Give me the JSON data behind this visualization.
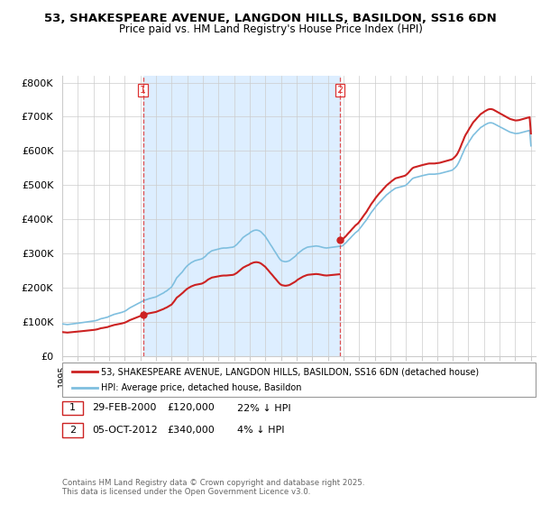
{
  "title": "53, SHAKESPEARE AVENUE, LANGDON HILLS, BASILDON, SS16 6DN",
  "subtitle": "Price paid vs. HM Land Registry's House Price Index (HPI)",
  "legend_line1": "53, SHAKESPEARE AVENUE, LANGDON HILLS, BASILDON, SS16 6DN (detached house)",
  "legend_line2": "HPI: Average price, detached house, Basildon",
  "sale1_date": "29-FEB-2000",
  "sale1_price": "£120,000",
  "sale1_hpi": "22% ↓ HPI",
  "sale2_date": "05-OCT-2012",
  "sale2_price": "£340,000",
  "sale2_hpi": "4% ↓ HPI",
  "footnote": "Contains HM Land Registry data © Crown copyright and database right 2025.\nThis data is licensed under the Open Government Licence v3.0.",
  "hpi_color": "#7fbfdf",
  "price_color": "#cc2222",
  "shade_color": "#ddeeff",
  "dashed_line_color": "#dd3333",
  "background_color": "#ffffff",
  "ylim": [
    0,
    820000
  ],
  "yticks": [
    0,
    100000,
    200000,
    300000,
    400000,
    500000,
    600000,
    700000,
    800000
  ],
  "sale1_x": 2000.17,
  "sale2_x": 2012.77,
  "sale1_price_val": 120000,
  "sale2_price_val": 340000,
  "hpi_x": [
    1995.0,
    1995.08,
    1995.17,
    1995.25,
    1995.33,
    1995.42,
    1995.5,
    1995.58,
    1995.67,
    1995.75,
    1995.83,
    1995.92,
    1996.0,
    1996.08,
    1996.17,
    1996.25,
    1996.33,
    1996.42,
    1996.5,
    1996.58,
    1996.67,
    1996.75,
    1996.83,
    1996.92,
    1997.0,
    1997.08,
    1997.17,
    1997.25,
    1997.33,
    1997.42,
    1997.5,
    1997.58,
    1997.67,
    1997.75,
    1997.83,
    1997.92,
    1998.0,
    1998.08,
    1998.17,
    1998.25,
    1998.33,
    1998.42,
    1998.5,
    1998.58,
    1998.67,
    1998.75,
    1998.83,
    1998.92,
    1999.0,
    1999.08,
    1999.17,
    1999.25,
    1999.33,
    1999.42,
    1999.5,
    1999.58,
    1999.67,
    1999.75,
    1999.83,
    1999.92,
    2000.0,
    2000.08,
    2000.17,
    2000.25,
    2000.33,
    2000.42,
    2000.5,
    2000.58,
    2000.67,
    2000.75,
    2000.83,
    2000.92,
    2001.0,
    2001.08,
    2001.17,
    2001.25,
    2001.33,
    2001.42,
    2001.5,
    2001.58,
    2001.67,
    2001.75,
    2001.83,
    2001.92,
    2002.0,
    2002.08,
    2002.17,
    2002.25,
    2002.33,
    2002.42,
    2002.5,
    2002.58,
    2002.67,
    2002.75,
    2002.83,
    2002.92,
    2003.0,
    2003.08,
    2003.17,
    2003.25,
    2003.33,
    2003.42,
    2003.5,
    2003.58,
    2003.67,
    2003.75,
    2003.83,
    2003.92,
    2004.0,
    2004.08,
    2004.17,
    2004.25,
    2004.33,
    2004.42,
    2004.5,
    2004.58,
    2004.67,
    2004.75,
    2004.83,
    2004.92,
    2005.0,
    2005.08,
    2005.17,
    2005.25,
    2005.33,
    2005.42,
    2005.5,
    2005.58,
    2005.67,
    2005.75,
    2005.83,
    2005.92,
    2006.0,
    2006.08,
    2006.17,
    2006.25,
    2006.33,
    2006.42,
    2006.5,
    2006.58,
    2006.67,
    2006.75,
    2006.83,
    2006.92,
    2007.0,
    2007.08,
    2007.17,
    2007.25,
    2007.33,
    2007.42,
    2007.5,
    2007.58,
    2007.67,
    2007.75,
    2007.83,
    2007.92,
    2008.0,
    2008.08,
    2008.17,
    2008.25,
    2008.33,
    2008.42,
    2008.5,
    2008.58,
    2008.67,
    2008.75,
    2008.83,
    2008.92,
    2009.0,
    2009.08,
    2009.17,
    2009.25,
    2009.33,
    2009.42,
    2009.5,
    2009.58,
    2009.67,
    2009.75,
    2009.83,
    2009.92,
    2010.0,
    2010.08,
    2010.17,
    2010.25,
    2010.33,
    2010.42,
    2010.5,
    2010.58,
    2010.67,
    2010.75,
    2010.83,
    2010.92,
    2011.0,
    2011.08,
    2011.17,
    2011.25,
    2011.33,
    2011.42,
    2011.5,
    2011.58,
    2011.67,
    2011.75,
    2011.83,
    2011.92,
    2012.0,
    2012.08,
    2012.17,
    2012.25,
    2012.33,
    2012.42,
    2012.5,
    2012.58,
    2012.67,
    2012.75,
    2012.83,
    2012.92,
    2013.0,
    2013.08,
    2013.17,
    2013.25,
    2013.33,
    2013.42,
    2013.5,
    2013.58,
    2013.67,
    2013.75,
    2013.83,
    2013.92,
    2014.0,
    2014.08,
    2014.17,
    2014.25,
    2014.33,
    2014.42,
    2014.5,
    2014.58,
    2014.67,
    2014.75,
    2014.83,
    2014.92,
    2015.0,
    2015.08,
    2015.17,
    2015.25,
    2015.33,
    2015.42,
    2015.5,
    2015.58,
    2015.67,
    2015.75,
    2015.83,
    2015.92,
    2016.0,
    2016.08,
    2016.17,
    2016.25,
    2016.33,
    2016.42,
    2016.5,
    2016.58,
    2016.67,
    2016.75,
    2016.83,
    2016.92,
    2017.0,
    2017.08,
    2017.17,
    2017.25,
    2017.33,
    2017.42,
    2017.5,
    2017.58,
    2017.67,
    2017.75,
    2017.83,
    2017.92,
    2018.0,
    2018.08,
    2018.17,
    2018.25,
    2018.33,
    2018.42,
    2018.5,
    2018.58,
    2018.67,
    2018.75,
    2018.83,
    2018.92,
    2019.0,
    2019.08,
    2019.17,
    2019.25,
    2019.33,
    2019.42,
    2019.5,
    2019.58,
    2019.67,
    2019.75,
    2019.83,
    2019.92,
    2020.0,
    2020.08,
    2020.17,
    2020.25,
    2020.33,
    2020.42,
    2020.5,
    2020.58,
    2020.67,
    2020.75,
    2020.83,
    2020.92,
    2021.0,
    2021.08,
    2021.17,
    2021.25,
    2021.33,
    2021.42,
    2021.5,
    2021.58,
    2021.67,
    2021.75,
    2021.83,
    2021.92,
    2022.0,
    2022.08,
    2022.17,
    2022.25,
    2022.33,
    2022.42,
    2022.5,
    2022.58,
    2022.67,
    2022.75,
    2022.83,
    2022.92,
    2023.0,
    2023.08,
    2023.17,
    2023.25,
    2023.33,
    2023.42,
    2023.5,
    2023.58,
    2023.67,
    2023.75,
    2023.83,
    2023.92,
    2024.0,
    2024.08,
    2024.17,
    2024.25,
    2024.33,
    2024.42,
    2024.5,
    2024.58,
    2024.67,
    2024.75,
    2024.83,
    2024.92,
    2025.0
  ],
  "hpi_y": [
    94000,
    93500,
    93000,
    92500,
    92000,
    92500,
    93000,
    93500,
    94000,
    94500,
    95000,
    95500,
    96000,
    96500,
    97000,
    97500,
    98000,
    98500,
    99000,
    99500,
    100000,
    100500,
    101000,
    101500,
    102000,
    103000,
    104000,
    105000,
    106500,
    108000,
    109500,
    110000,
    111000,
    112000,
    113000,
    114000,
    116000,
    117500,
    119000,
    120500,
    122000,
    123000,
    124000,
    125000,
    126000,
    127000,
    128000,
    129500,
    131000,
    133000,
    136000,
    139000,
    141000,
    143000,
    145000,
    147000,
    149000,
    151000,
    153000,
    155000,
    157000,
    159000,
    161000,
    163000,
    164000,
    165500,
    167000,
    168000,
    169000,
    170000,
    171000,
    172000,
    173000,
    175000,
    177000,
    179000,
    181000,
    183000,
    185000,
    188000,
    190000,
    193000,
    196000,
    199000,
    202000,
    208000,
    215000,
    222000,
    229000,
    233000,
    237000,
    241000,
    245000,
    250000,
    255000,
    260000,
    264000,
    267000,
    270000,
    273000,
    275000,
    277000,
    279000,
    280000,
    281000,
    282000,
    283000,
    284000,
    286000,
    289000,
    292000,
    296000,
    300000,
    303000,
    306000,
    308000,
    309000,
    310000,
    311000,
    312000,
    313000,
    314000,
    315000,
    315500,
    316000,
    316000,
    316000,
    316500,
    317000,
    317500,
    318000,
    318500,
    320000,
    323000,
    326000,
    330000,
    334000,
    338000,
    343000,
    347000,
    350000,
    353000,
    355000,
    357000,
    360000,
    363000,
    365000,
    367000,
    368000,
    368500,
    368000,
    367000,
    365000,
    362000,
    358000,
    354000,
    350000,
    344000,
    338000,
    332000,
    326000,
    320000,
    314000,
    308000,
    302000,
    296000,
    290000,
    284000,
    280000,
    278000,
    277000,
    276000,
    276000,
    277000,
    278000,
    280000,
    283000,
    286000,
    289000,
    292000,
    296000,
    300000,
    303000,
    306000,
    309000,
    312000,
    314000,
    316000,
    318000,
    319000,
    319500,
    320000,
    320500,
    321000,
    321500,
    322000,
    321500,
    321000,
    320000,
    319000,
    318000,
    317000,
    316500,
    316000,
    316500,
    317000,
    317500,
    318000,
    318500,
    319000,
    319500,
    320000,
    320500,
    321000,
    321500,
    322000,
    325000,
    328000,
    332000,
    336000,
    340000,
    344000,
    348000,
    352000,
    356000,
    360000,
    363000,
    366000,
    370000,
    375000,
    380000,
    385000,
    390000,
    395000,
    400000,
    406000,
    412000,
    418000,
    423000,
    428000,
    433000,
    438000,
    443000,
    447000,
    451000,
    455000,
    459000,
    463000,
    467000,
    471000,
    474000,
    477000,
    480000,
    483000,
    486000,
    489000,
    491000,
    492000,
    493000,
    494000,
    495000,
    496000,
    497000,
    498000,
    500000,
    503000,
    507000,
    511000,
    515000,
    519000,
    521000,
    522000,
    523000,
    524000,
    525000,
    526000,
    527000,
    528000,
    529000,
    530000,
    531000,
    531500,
    532000,
    532000,
    532000,
    532000,
    532000,
    532500,
    533000,
    533500,
    534000,
    535000,
    536000,
    537000,
    538000,
    539000,
    540000,
    541000,
    542000,
    543000,
    545000,
    548000,
    552000,
    556000,
    562000,
    570000,
    578000,
    587000,
    596000,
    605000,
    612000,
    618000,
    624000,
    630000,
    636000,
    642000,
    647000,
    651000,
    655000,
    659000,
    663000,
    667000,
    670000,
    672000,
    675000,
    677000,
    679000,
    681000,
    682000,
    682500,
    682000,
    681000,
    679000,
    677000,
    675000,
    673000,
    671000,
    669000,
    667000,
    665000,
    663000,
    661000,
    659000,
    657000,
    655000,
    654000,
    653000,
    652000,
    651000,
    651000,
    651500,
    652000,
    653000,
    654000,
    655000,
    656000,
    657000,
    658000,
    659000,
    660000,
    615000
  ]
}
